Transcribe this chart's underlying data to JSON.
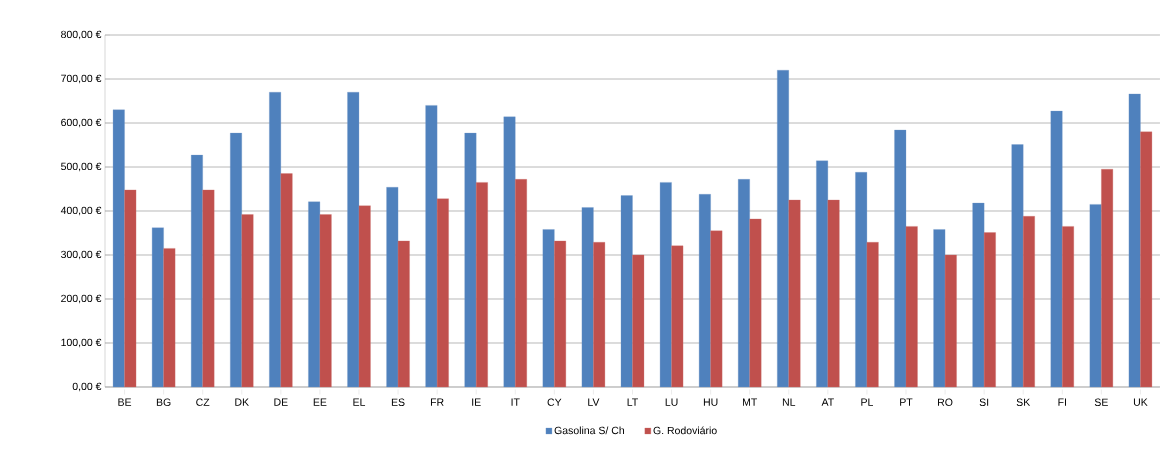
{
  "chart_data": {
    "type": "bar",
    "categories": [
      "BE",
      "BG",
      "CZ",
      "DK",
      "DE",
      "EE",
      "EL",
      "ES",
      "FR",
      "IE",
      "IT",
      "CY",
      "LV",
      "LT",
      "LU",
      "HU",
      "MT",
      "NL",
      "AT",
      "PL",
      "PT",
      "RO",
      "SI",
      "SK",
      "FI",
      "SE",
      "UK"
    ],
    "series": [
      {
        "name": "Gasolina S/ Ch",
        "color": "#4f81bd",
        "values": [
          630,
          362,
          527,
          577,
          670,
          421,
          670,
          454,
          640,
          577,
          614,
          358,
          408,
          435,
          465,
          438,
          472,
          720,
          514,
          488,
          584,
          358,
          418,
          551,
          627,
          415,
          666
        ]
      },
      {
        "name": "G. Rodoviário",
        "color": "#c0504d",
        "values": [
          448,
          315,
          448,
          392,
          485,
          392,
          412,
          332,
          428,
          465,
          472,
          332,
          329,
          300,
          321,
          355,
          382,
          425,
          425,
          329,
          365,
          300,
          351,
          388,
          365,
          495,
          580
        ]
      }
    ],
    "ylim": [
      0,
      800
    ],
    "yticks": [
      {
        "value": 0,
        "label": "0,00 €"
      },
      {
        "value": 100,
        "label": "100,00 €"
      },
      {
        "value": 200,
        "label": "200,00 €"
      },
      {
        "value": 300,
        "label": "300,00 €"
      },
      {
        "value": 400,
        "label": "400,00 €"
      },
      {
        "value": 500,
        "label": "500,00 €"
      },
      {
        "value": 600,
        "label": "600,00 €"
      },
      {
        "value": 700,
        "label": "700,00 €"
      },
      {
        "value": 800,
        "label": "800,00 €"
      }
    ],
    "grid": "y",
    "legend": "bottom"
  }
}
